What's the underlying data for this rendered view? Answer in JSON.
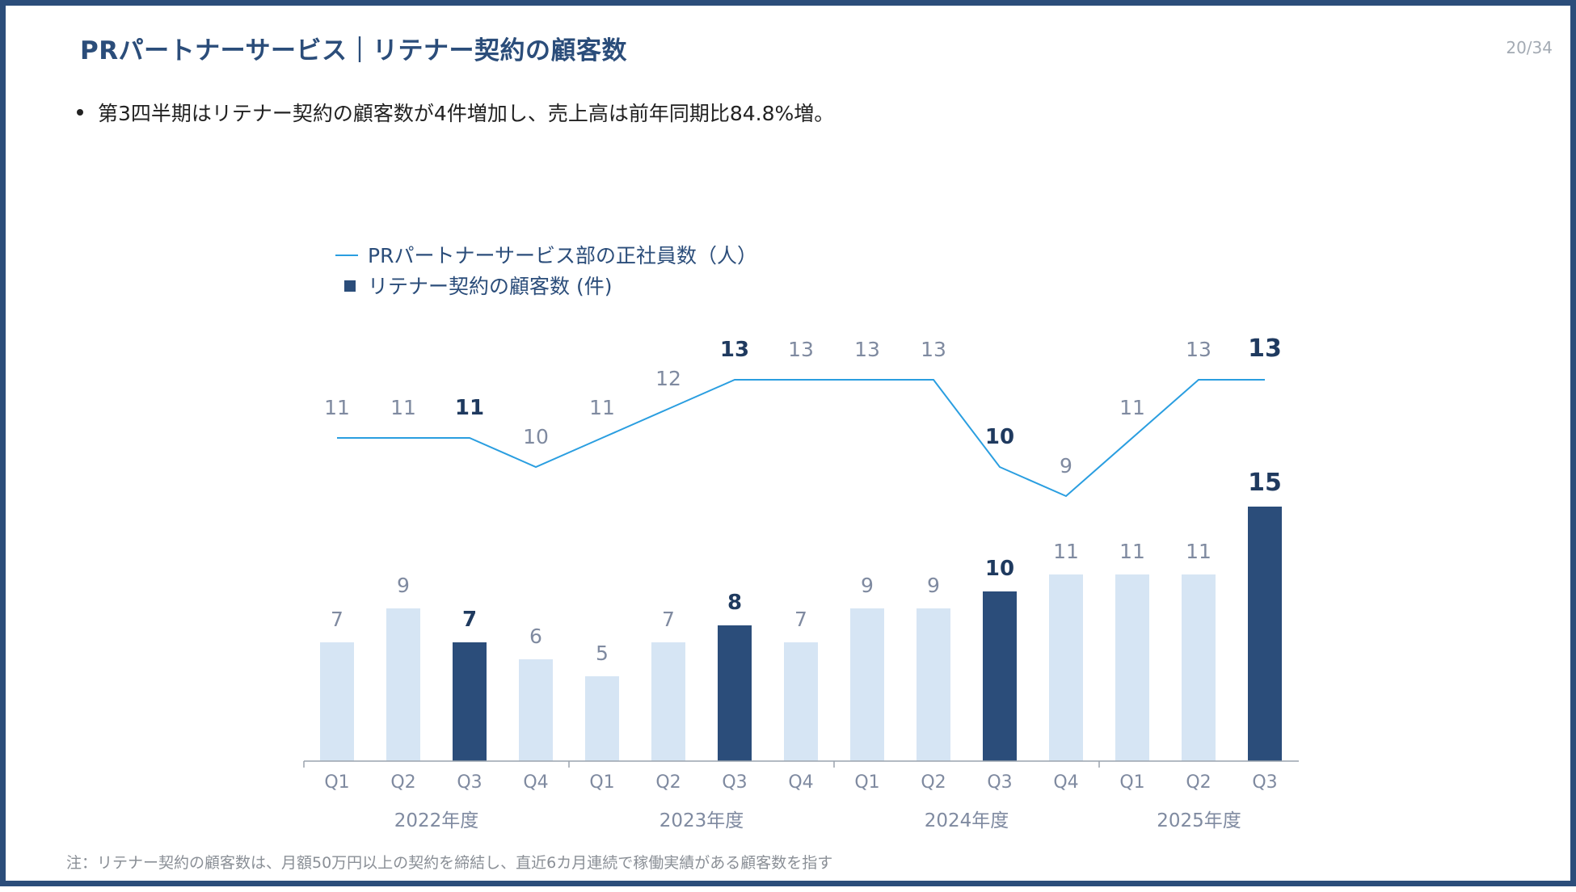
{
  "header": {
    "title": "PRパートナーサービス｜リテナー契約の顧客数",
    "page_number": "20/34"
  },
  "summary": {
    "bullet": "第3四半期はリテナー契約の顧客数が4件増加し、売上高は前年同期比84.8%増。"
  },
  "footnote": "注：リテナー契約の顧客数は、月額50万円以上の契約を締結し、直近6カ月連続で稼働実績がある顧客数を指す",
  "colors": {
    "line": "#2a9ee0",
    "bar_highlight": "#2b4d7a",
    "bar_normal": "#d6e5f4",
    "label_normal": "#7f8aa0",
    "label_highlight": "#1f3a5f"
  },
  "chart_data": {
    "type": "bar",
    "title": "",
    "legend": {
      "line_label": "PRパートナーサービス部の正社員数（人）",
      "bar_label": "リテナー契約の顧客数 (件)",
      "placement": "top-left"
    },
    "categories": [
      "Q1",
      "Q2",
      "Q3",
      "Q4",
      "Q1",
      "Q2",
      "Q3",
      "Q4",
      "Q1",
      "Q2",
      "Q3",
      "Q4",
      "Q1",
      "Q2",
      "Q3"
    ],
    "fiscal_years": [
      {
        "label": "2022年度",
        "start": 0,
        "end": 3
      },
      {
        "label": "2023年度",
        "start": 4,
        "end": 7
      },
      {
        "label": "2024年度",
        "start": 8,
        "end": 11
      },
      {
        "label": "2025年度",
        "start": 12,
        "end": 14
      }
    ],
    "series": [
      {
        "name": "リテナー契約の顧客数 (件)",
        "type": "bar",
        "values": [
          7,
          9,
          7,
          6,
          5,
          7,
          8,
          7,
          9,
          9,
          10,
          11,
          11,
          11,
          15
        ]
      },
      {
        "name": "PRパートナーサービス部の正社員数（人）",
        "type": "line",
        "values": [
          11,
          11,
          11,
          10,
          11,
          12,
          13,
          13,
          13,
          13,
          10,
          9,
          11,
          13,
          13
        ]
      }
    ],
    "highlighted_indices": [
      2,
      6,
      10,
      14
    ],
    "xlabel": "",
    "ylabel": "",
    "grid": false
  }
}
